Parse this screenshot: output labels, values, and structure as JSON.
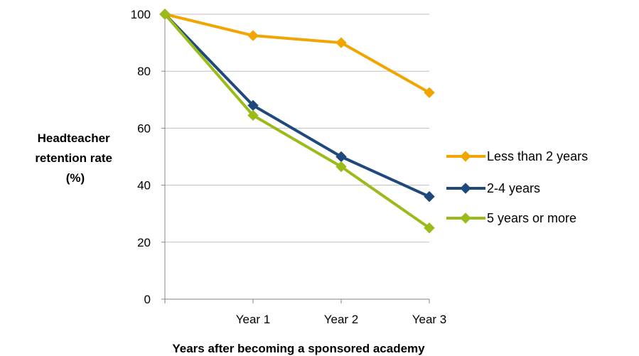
{
  "chart_data": {
    "type": "line",
    "title": "",
    "categories": [
      "",
      "Year 1",
      "Year 2",
      "Year 3"
    ],
    "xlabel": "Years after  becoming a sponsored  academy",
    "ylabel_lines": [
      "Headteacher",
      "retention rate",
      "(%)"
    ],
    "ylim": [
      0,
      100
    ],
    "yticks": [
      0,
      20,
      40,
      60,
      80,
      100
    ],
    "grid": true,
    "legend_position": "right",
    "series": [
      {
        "name": "Less than 2 years",
        "color": "#F0A500",
        "values": [
          100,
          92.5,
          90,
          72.5
        ]
      },
      {
        "name": "2-4 years",
        "color": "#1F497D",
        "values": [
          100,
          68,
          50,
          36
        ]
      },
      {
        "name": "5 years or more",
        "color": "#9BBB1B",
        "values": [
          100,
          64.5,
          46.5,
          25
        ]
      }
    ]
  }
}
